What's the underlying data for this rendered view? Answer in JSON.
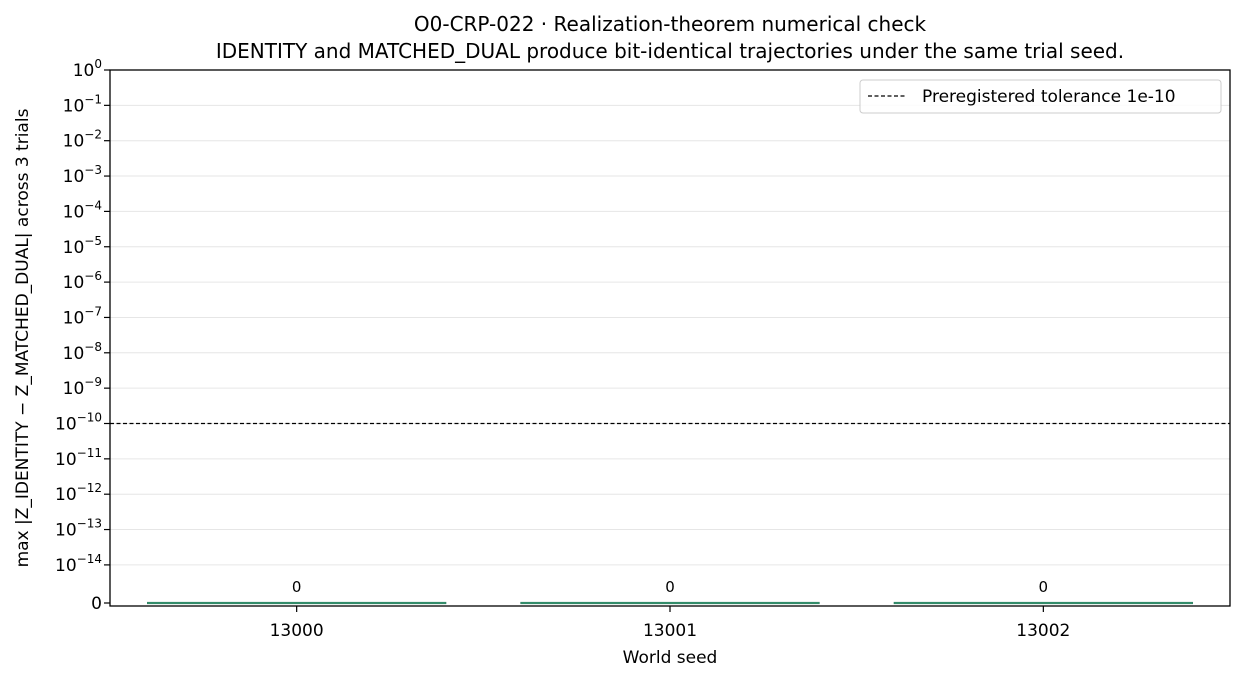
{
  "chart_data": {
    "type": "bar",
    "title": "O0-CRP-022 · Realization-theorem numerical check",
    "subtitle": "IDENTITY and MATCHED_DUAL produce bit-identical trajectories under the same trial seed.",
    "xlabel": "World seed",
    "ylabel": "max |Z_IDENTITY − Z_MATCHED_DUAL| across 3 trials",
    "categories": [
      "13000",
      "13001",
      "13002"
    ],
    "values": [
      0,
      0,
      0
    ],
    "data_labels": [
      "0",
      "0",
      "0"
    ],
    "y_scale": "symlog",
    "ylim": [
      0,
      1
    ],
    "y_ticks": [
      {
        "base": "10",
        "exp": "0"
      },
      {
        "base": "10",
        "exp": "−1"
      },
      {
        "base": "10",
        "exp": "−2"
      },
      {
        "base": "10",
        "exp": "−3"
      },
      {
        "base": "10",
        "exp": "−4"
      },
      {
        "base": "10",
        "exp": "−5"
      },
      {
        "base": "10",
        "exp": "−6"
      },
      {
        "base": "10",
        "exp": "−7"
      },
      {
        "base": "10",
        "exp": "−8"
      },
      {
        "base": "10",
        "exp": "−9"
      },
      {
        "base": "10",
        "exp": "−10"
      },
      {
        "base": "10",
        "exp": "−11"
      },
      {
        "base": "10",
        "exp": "−12"
      },
      {
        "base": "10",
        "exp": "−13"
      },
      {
        "base": "10",
        "exp": "−14"
      },
      {
        "base": "0",
        "exp": ""
      }
    ],
    "reference_line": {
      "value": 1e-10,
      "label": "Preregistered tolerance 1e-10",
      "style": "dashed",
      "color": "#000000"
    },
    "bar_color": "#3a9e78",
    "grid": "horizontal",
    "legend_position": "top-right"
  }
}
